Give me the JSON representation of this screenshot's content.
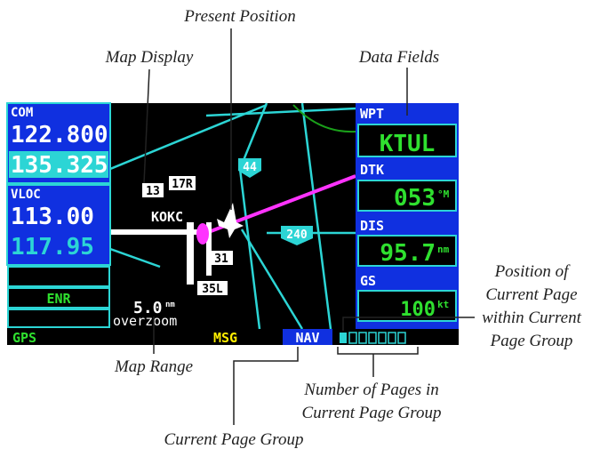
{
  "callouts": {
    "present_position": "Present Position",
    "map_display": "Map Display",
    "data_fields": "Data Fields",
    "page_position": [
      "Position of",
      "Current Page",
      "within Current",
      "Page Group"
    ],
    "map_range": "Map Range",
    "page_count": [
      "Number of Pages in",
      "Current Page Group"
    ],
    "page_group": "Current Page Group"
  },
  "left_panel": {
    "com_label": "COM",
    "com_active": "122.800",
    "com_standby": "135.325",
    "vloc_label": "VLOC",
    "vloc_active": "113.00",
    "vloc_standby": "117.95",
    "cdi_mode": "ENR"
  },
  "map": {
    "range": "5.0",
    "range_unit": "nm",
    "zoom": "overzoom",
    "labels": [
      "13",
      "17R",
      "KOKC",
      "31",
      "35L",
      "44",
      "240"
    ]
  },
  "data_fields": [
    {
      "label": "WPT",
      "value": "KTUL"
    },
    {
      "label": "DTK",
      "value": "053",
      "unit": "°M"
    },
    {
      "label": "DIS",
      "value": "95.7",
      "unit": "nm"
    },
    {
      "label": "GS",
      "value": "100",
      "unit": "kt"
    }
  ],
  "status_bar": {
    "gps": "GPS",
    "msg": "MSG",
    "page_group": "NAV"
  }
}
